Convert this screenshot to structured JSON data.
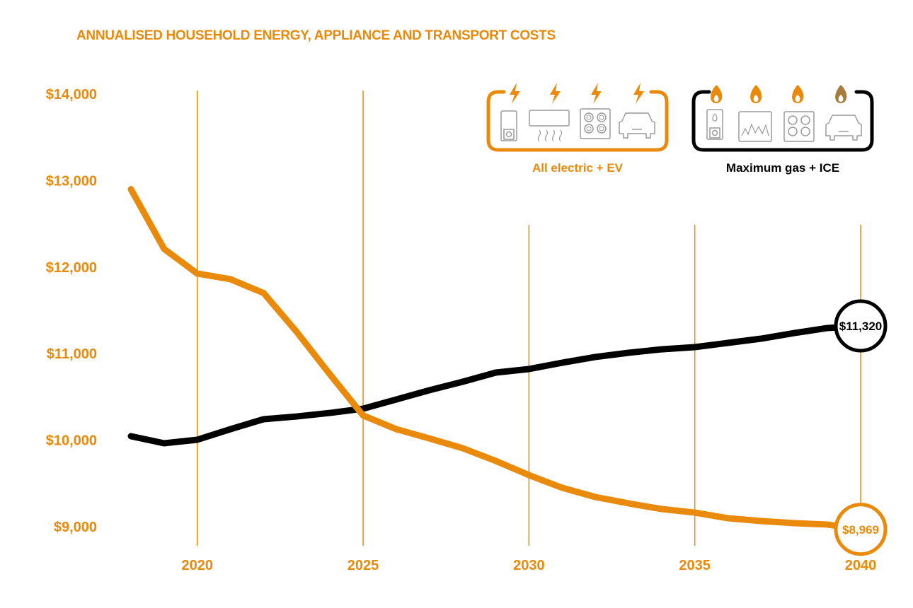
{
  "colors": {
    "electric": "#E98A0A",
    "gas": "#000000",
    "icon_gray": "#9a9a9a",
    "ice_flame": "#A67C3D"
  },
  "chart_data": {
    "type": "line",
    "title": "ANNUALISED HOUSEHOLD ENERGY, APPLIANCE AND TRANSPORT COSTS",
    "xlabel": "",
    "ylabel": "",
    "xlim": [
      2018,
      2040
    ],
    "ylim": [
      9000,
      14000
    ],
    "x_ticks": [
      2020,
      2025,
      2030,
      2035,
      2040
    ],
    "x_tick_labels": [
      "2020",
      "2025",
      "2030",
      "2035",
      "2040"
    ],
    "y_ticks": [
      9000,
      10000,
      11000,
      12000,
      13000,
      14000
    ],
    "y_tick_labels": [
      "$9,000",
      "$10,000",
      "$11,000",
      "$12,000",
      "$13,000",
      "$14,000"
    ],
    "grid": "vertical lines at x ticks",
    "legend_placement": "top-right",
    "x": [
      2018,
      2019,
      2020,
      2021,
      2022,
      2023,
      2024,
      2025,
      2026,
      2027,
      2028,
      2029,
      2030,
      2031,
      2032,
      2033,
      2034,
      2035,
      2036,
      2037,
      2038,
      2039,
      2040
    ],
    "series": [
      {
        "name": "All electric + EV",
        "color": "#E98A0A",
        "values": [
          12900,
          12210,
          11925,
          11860,
          11700,
          11250,
          10760,
          10285,
          10127,
          10020,
          9907,
          9760,
          9596,
          9450,
          9343,
          9270,
          9204,
          9163,
          9098,
          9065,
          9041,
          9025,
          8969
        ],
        "end_label": "$8,969",
        "icons": [
          "bolt-icon",
          "bolt-icon",
          "bolt-icon",
          "bolt-icon",
          "heat-pump-water-heater-icon",
          "split-system-ac-icon",
          "induction-cooktop-icon",
          "electric-car-icon"
        ]
      },
      {
        "name": "Maximum gas + ICE",
        "color": "#000000",
        "values": [
          10046,
          9964,
          10005,
          10127,
          10242,
          10274,
          10315,
          10364,
          10470,
          10577,
          10675,
          10781,
          10822,
          10895,
          10961,
          11010,
          11050,
          11075,
          11124,
          11173,
          11238,
          11296,
          11320
        ],
        "end_label": "$11,320",
        "icons": [
          "flame-icon",
          "flame-icon",
          "flame-icon",
          "flame-icon",
          "gas-water-heater-icon",
          "gas-heater-icon",
          "gas-cooktop-icon",
          "petrol-car-icon"
        ]
      }
    ]
  }
}
